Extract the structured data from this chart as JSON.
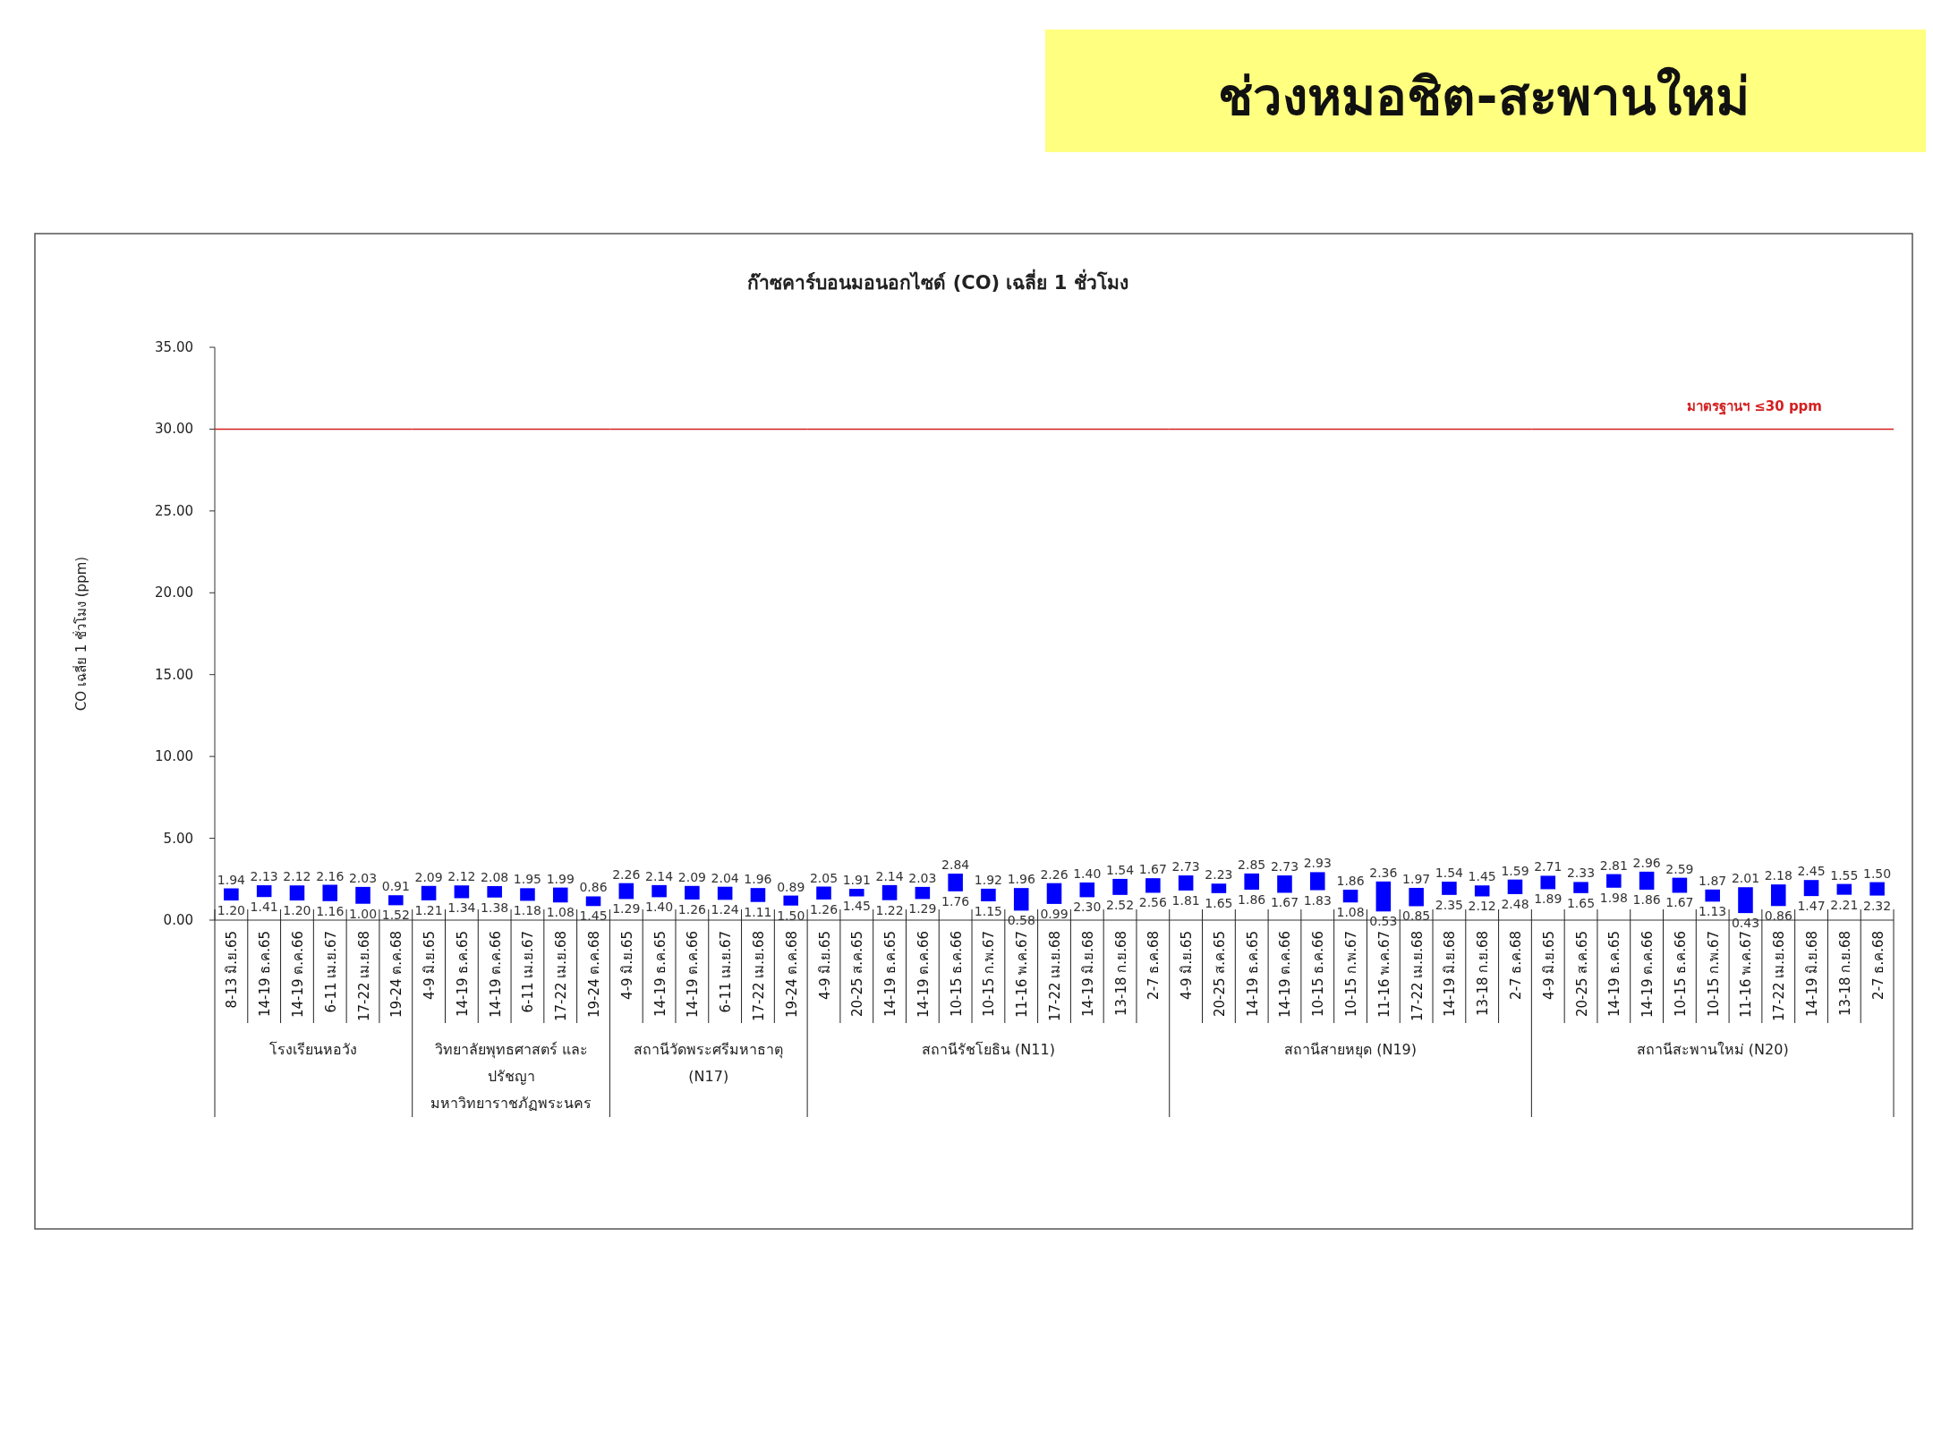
{
  "chart_data": [
    {
      "type": "other",
      "title": "ช่วงหมอชิต-สะพานใหม่",
      "subtitle": "ก๊าซคาร์บอนมอนอกไซด์ (CO) เฉลี่ย 1 ชั่วโมง"
    },
    {
      "type": "bar",
      "ylabel": "CO เฉลี่ย 1 ชั่วโมง (ppm)",
      "xlabel": "โรงเรียนหอวัง",
      "categories": [
        "8-13 มิ.ย.65",
        "14-19 ธ.ค.65",
        "14-19 ต.ค.66",
        "6-11 เม.ย.67",
        "17-22 เม.ย.68",
        "19-24 ต.ค.68"
      ],
      "series": [
        {
          "color": "#0000ff",
          "base": [
            1.2,
            1.41,
            1.2,
            1.16,
            1.0,
            1.52
          ],
          "values": [
            0.74,
            0.72,
            0.92,
            1.0,
            1.03,
            -0.61
          ],
          "value_labels": [
            "1.94",
            "2.13",
            "2.12",
            "2.16",
            "2.03",
            "0.91"
          ]
        }
      ],
      "annotations": [
        {
          "text": "1.20",
          "x": "8-13 มิ.ย.65",
          "y": 1.2
        },
        {
          "text": "1.41",
          "x": "14-19 ธ.ค.65",
          "y": 1.41
        },
        {
          "text": "1.20",
          "x": "14-19 ต.ค.66",
          "y": 1.2
        },
        {
          "text": "1.16",
          "x": "6-11 เม.ย.67",
          "y": 1.16
        },
        {
          "text": "1.00",
          "x": "17-22 เม.ย.68",
          "y": 1.0
        },
        {
          "text": "1.52",
          "x": "19-24 ต.ค.68",
          "y": 1.52
        }
      ],
      "ylim": [
        0,
        35
      ],
      "yticks": [
        {
          "value": 0,
          "label": "0.00"
        },
        {
          "value": 5,
          "label": "5.00"
        },
        {
          "value": 10,
          "label": "10.00"
        },
        {
          "value": 15,
          "label": "15.00"
        },
        {
          "value": 20,
          "label": "20.00"
        },
        {
          "value": 25,
          "label": "25.00"
        },
        {
          "value": 30,
          "label": "30.00"
        },
        {
          "value": 35,
          "label": "35.00"
        }
      ],
      "ref_lines": [
        {
          "axis": "y",
          "value": 30,
          "color": "#d42020"
        }
      ]
    },
    {
      "type": "bar",
      "xlabel": "วิทยาลัยพุทธศาสตร์ และ ปรัชญา มหาวิทยาราชภัฏพระนคร",
      "tick_labels": "x",
      "categories": [
        "4-9 มิ.ย.65",
        "14-19 ธ.ค.65",
        "14-19 ต.ค.66",
        "6-11 เม.ย.67",
        "17-22 เม.ย.68",
        "19-24 ต.ค.68"
      ],
      "series": [
        {
          "color": "#0000ff",
          "base": [
            1.21,
            1.34,
            1.38,
            1.18,
            1.08,
            1.45
          ],
          "values": [
            0.88,
            0.78,
            0.7,
            0.77,
            0.91,
            -0.59
          ],
          "value_labels": [
            "2.09",
            "2.12",
            "2.08",
            "1.95",
            "1.99",
            "0.86"
          ]
        }
      ],
      "annotations": [
        {
          "text": "1.21",
          "x": "4-9 มิ.ย.65",
          "y": 1.21
        },
        {
          "text": "1.34",
          "x": "14-19 ธ.ค.65",
          "y": 1.34
        },
        {
          "text": "1.38",
          "x": "14-19 ต.ค.66",
          "y": 1.38
        },
        {
          "text": "1.18",
          "x": "6-11 เม.ย.67",
          "y": 1.18
        },
        {
          "text": "1.08",
          "x": "17-22 เม.ย.68",
          "y": 1.08
        },
        {
          "text": "1.45",
          "x": "19-24 ต.ค.68",
          "y": 1.45
        }
      ],
      "ylim": [
        0,
        35
      ],
      "ref_lines": [
        {
          "axis": "y",
          "value": 30,
          "color": "#d42020"
        }
      ]
    },
    {
      "type": "bar",
      "xlabel": "สถานีวัดพระศรีมหาธาตุ (N17)",
      "tick_labels": "x",
      "categories": [
        "4-9 มิ.ย.65",
        "14-19 ธ.ค.65",
        "14-19 ต.ค.66",
        "6-11 เม.ย.67",
        "17-22 เม.ย.68",
        "19-24 ต.ค.68"
      ],
      "series": [
        {
          "color": "#0000ff",
          "base": [
            1.29,
            1.4,
            1.26,
            1.24,
            1.11,
            1.5
          ],
          "values": [
            0.97,
            0.74,
            0.83,
            0.8,
            0.85,
            -0.61
          ],
          "value_labels": [
            "2.26",
            "2.14",
            "2.09",
            "2.04",
            "1.96",
            "0.89"
          ]
        }
      ],
      "annotations": [
        {
          "text": "1.29",
          "x": "4-9 มิ.ย.65",
          "y": 1.29
        },
        {
          "text": "1.40",
          "x": "14-19 ธ.ค.65",
          "y": 1.4
        },
        {
          "text": "1.26",
          "x": "14-19 ต.ค.66",
          "y": 1.26
        },
        {
          "text": "1.24",
          "x": "6-11 เม.ย.67",
          "y": 1.24
        },
        {
          "text": "1.11",
          "x": "17-22 เม.ย.68",
          "y": 1.11
        },
        {
          "text": "1.50",
          "x": "19-24 ต.ค.68",
          "y": 1.5
        }
      ],
      "ylim": [
        0,
        35
      ],
      "ref_lines": [
        {
          "axis": "y",
          "value": 30,
          "color": "#d42020"
        }
      ]
    },
    {
      "type": "bar",
      "xlabel": "สถานีรัชโยธิน (N11)",
      "tick_labels": "x",
      "categories": [
        "4-9 มิ.ย.65",
        "20-25 ส.ค.65",
        "14-19 ธ.ค.65",
        "14-19 ต.ค.66",
        "10-15 ธ.ค.66",
        "10-15 ก.พ.67",
        "11-16 พ.ค.67",
        "17-22 เม.ย.68",
        "14-19 มิ.ย.68",
        "13-18 ก.ย.68",
        "2-7 ธ.ค.68"
      ],
      "series": [
        {
          "color": "#0000ff",
          "base": [
            1.26,
            1.45,
            1.22,
            1.29,
            1.76,
            1.15,
            0.58,
            0.99,
            2.3,
            2.52,
            2.56
          ],
          "values": [
            0.79,
            0.46,
            0.92,
            0.74,
            1.08,
            0.77,
            1.38,
            1.27,
            -0.9,
            -0.98,
            -0.89
          ],
          "value_labels": [
            "2.05",
            "1.91",
            "2.14",
            "2.03",
            "2.84",
            "1.92",
            "1.96",
            "2.26",
            "1.40",
            "1.54",
            "1.67"
          ]
        }
      ],
      "annotations": [
        {
          "text": "1.26",
          "x": "4-9 มิ.ย.65",
          "y": 1.26
        },
        {
          "text": "1.45",
          "x": "20-25 ส.ค.65",
          "y": 1.45
        },
        {
          "text": "1.22",
          "x": "14-19 ธ.ค.65",
          "y": 1.22
        },
        {
          "text": "1.29",
          "x": "14-19 ต.ค.66",
          "y": 1.29
        },
        {
          "text": "1.76",
          "x": "10-15 ธ.ค.66",
          "y": 1.76
        },
        {
          "text": "1.15",
          "x": "10-15 ก.พ.67",
          "y": 1.15
        },
        {
          "text": "0.58",
          "x": "11-16 พ.ค.67",
          "y": 0.58
        },
        {
          "text": "0.99",
          "x": "17-22 เม.ย.68",
          "y": 0.99
        },
        {
          "text": "2.30",
          "x": "14-19 มิ.ย.68",
          "y": 2.3
        },
        {
          "text": "2.52",
          "x": "13-18 ก.ย.68",
          "y": 2.52
        },
        {
          "text": "2.56",
          "x": "2-7 ธ.ค.68",
          "y": 2.56
        }
      ],
      "ylim": [
        0,
        35
      ],
      "ref_lines": [
        {
          "axis": "y",
          "value": 30,
          "color": "#d42020"
        }
      ]
    },
    {
      "type": "bar",
      "xlabel": "สถานีสายหยุด (N19)",
      "tick_labels": "x",
      "categories": [
        "4-9 มิ.ย.65",
        "20-25 ส.ค.65",
        "14-19 ธ.ค.65",
        "14-19 ต.ค.66",
        "10-15 ธ.ค.66",
        "10-15 ก.พ.67",
        "11-16 พ.ค.67",
        "17-22 เม.ย.68",
        "14-19 มิ.ย.68",
        "13-18 ก.ย.68",
        "2-7 ธ.ค.68"
      ],
      "series": [
        {
          "color": "#0000ff",
          "base": [
            1.81,
            1.65,
            1.86,
            1.67,
            1.83,
            1.08,
            0.53,
            0.85,
            2.35,
            2.12,
            2.48
          ],
          "values": [
            0.92,
            0.58,
            0.99,
            1.06,
            1.1,
            0.78,
            1.83,
            1.12,
            -0.81,
            -0.67,
            -0.89
          ],
          "value_labels": [
            "2.73",
            "2.23",
            "2.85",
            "2.73",
            "2.93",
            "1.86",
            "2.36",
            "1.97",
            "1.54",
            "1.45",
            "1.59"
          ]
        }
      ],
      "annotations": [
        {
          "text": "1.81",
          "x": "4-9 มิ.ย.65",
          "y": 1.81
        },
        {
          "text": "1.65",
          "x": "20-25 ส.ค.65",
          "y": 1.65
        },
        {
          "text": "1.86",
          "x": "14-19 ธ.ค.65",
          "y": 1.86
        },
        {
          "text": "1.67",
          "x": "14-19 ต.ค.66",
          "y": 1.67
        },
        {
          "text": "1.83",
          "x": "10-15 ธ.ค.66",
          "y": 1.83
        },
        {
          "text": "1.08",
          "x": "10-15 ก.พ.67",
          "y": 1.08
        },
        {
          "text": "0.53",
          "x": "11-16 พ.ค.67",
          "y": 0.53
        },
        {
          "text": "0.85",
          "x": "17-22 เม.ย.68",
          "y": 0.85
        },
        {
          "text": "2.35",
          "x": "14-19 มิ.ย.68",
          "y": 2.35
        },
        {
          "text": "2.12",
          "x": "13-18 ก.ย.68",
          "y": 2.12
        },
        {
          "text": "2.48",
          "x": "2-7 ธ.ค.68",
          "y": 2.48
        }
      ],
      "ylim": [
        0,
        35
      ],
      "ref_lines": [
        {
          "axis": "y",
          "value": 30,
          "color": "#d42020"
        }
      ]
    },
    {
      "type": "bar",
      "xlabel": "สถานีสะพานใหม่ (N20)",
      "tick_labels": "x",
      "categories": [
        "4-9 มิ.ย.65",
        "20-25 ส.ค.65",
        "14-19 ธ.ค.65",
        "14-19 ต.ค.66",
        "10-15 ธ.ค.66",
        "10-15 ก.พ.67",
        "11-16 พ.ค.67",
        "17-22 เม.ย.68",
        "14-19 มิ.ย.68",
        "13-18 ก.ย.68",
        "2-7 ธ.ค.68"
      ],
      "series": [
        {
          "color": "#0000ff",
          "base": [
            1.89,
            1.65,
            1.98,
            1.86,
            1.67,
            1.13,
            0.43,
            0.86,
            1.47,
            2.21,
            2.32
          ],
          "values": [
            0.82,
            0.68,
            0.83,
            1.1,
            0.92,
            0.74,
            1.58,
            1.32,
            0.98,
            -0.66,
            -0.82
          ],
          "value_labels": [
            "2.71",
            "2.33",
            "2.81",
            "2.96",
            "2.59",
            "1.87",
            "2.01",
            "2.18",
            "2.45",
            "1.55",
            "1.50"
          ]
        }
      ],
      "annotations": [
        {
          "text": "1.89",
          "x": "4-9 มิ.ย.65",
          "y": 1.89
        },
        {
          "text": "1.65",
          "x": "20-25 ส.ค.65",
          "y": 1.65
        },
        {
          "text": "1.98",
          "x": "14-19 ธ.ค.65",
          "y": 1.98
        },
        {
          "text": "1.86",
          "x": "14-19 ต.ค.66",
          "y": 1.86
        },
        {
          "text": "1.67",
          "x": "10-15 ธ.ค.66",
          "y": 1.67
        },
        {
          "text": "1.13",
          "x": "10-15 ก.พ.67",
          "y": 1.13
        },
        {
          "text": "0.43",
          "x": "11-16 พ.ค.67",
          "y": 0.43
        },
        {
          "text": "0.86",
          "x": "17-22 เม.ย.68",
          "y": 0.86
        },
        {
          "text": "1.47",
          "x": "14-19 มิ.ย.68",
          "y": 1.47
        },
        {
          "text": "2.21",
          "x": "13-18 ก.ย.68",
          "y": 2.21
        },
        {
          "text": "2.32",
          "x": "2-7 ธ.ค.68",
          "y": 2.32
        }
      ],
      "ylim": [
        0,
        35
      ],
      "ref_lines": [
        {
          "axis": "y",
          "value": 30,
          "label": "มาตรฐานฯ ≤30 ppm",
          "color": "#d42020"
        }
      ]
    }
  ]
}
